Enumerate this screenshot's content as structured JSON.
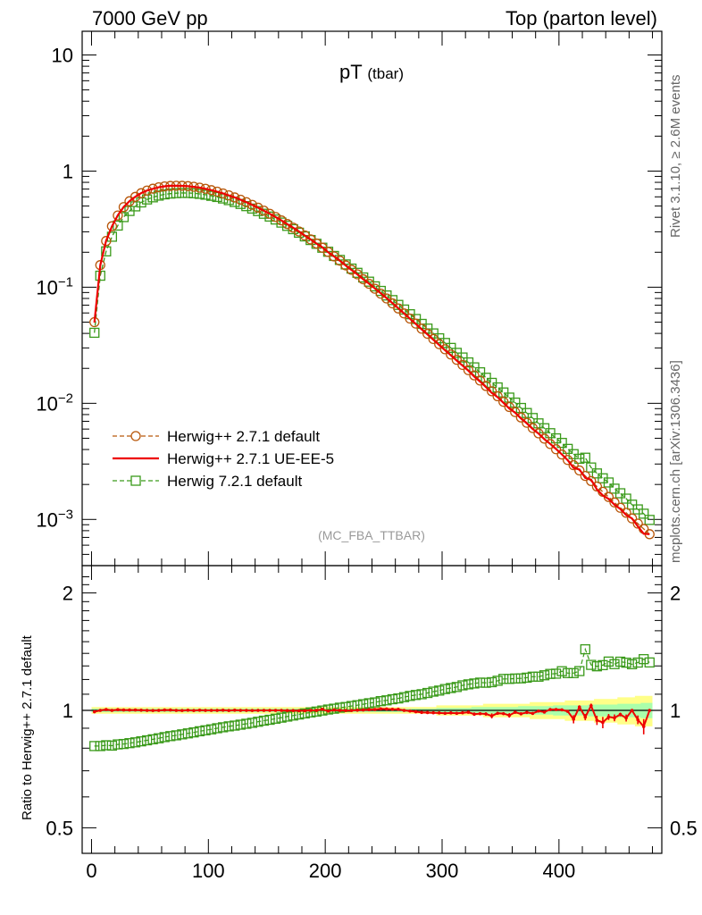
{
  "header": {
    "left": "7000 GeV pp",
    "right": "Top (parton level)"
  },
  "side_labels": {
    "rivet": "Rivet 3.1.10, ≥ 2.6M events",
    "mcplots": "mcplots.cern.ch [arXiv:1306.3436]"
  },
  "ratio_ylabel": "Ratio to Herwig++ 2.7.1 default",
  "colors": {
    "herwigpp_default": "#b8570a",
    "ue_ee5": "#ee0000",
    "herwig721": "#3a9a1a",
    "band_yellow": "#ffff88",
    "band_green": "#aaffaa"
  },
  "chart_data": [
    {
      "type": "line",
      "title": "pT",
      "title_suffix": "(tbar)",
      "annotation": "(MC_FBA_TTBAR)",
      "xlim": [
        -8,
        488
      ],
      "ylim": [
        0.0004,
        16
      ],
      "yscale": "log",
      "yticks": [
        {
          "v": 10,
          "m": "10",
          "e": ""
        },
        {
          "v": 1,
          "m": "1",
          "e": ""
        },
        {
          "v": 0.1,
          "m": "10",
          "e": "−1"
        },
        {
          "v": 0.01,
          "m": "10",
          "e": "−2"
        },
        {
          "v": 0.001,
          "m": "10",
          "e": "−3"
        }
      ],
      "legend_position": "bottom-left",
      "legend": [
        "Herwig++ 2.7.1 default",
        "Herwig++ 2.7.1 UE-EE-5",
        "Herwig 7.2.1 default"
      ],
      "x": [
        2.5,
        7.5,
        12.5,
        17.5,
        22.5,
        27.5,
        32.5,
        37.5,
        42.5,
        47.5,
        52.5,
        57.5,
        62.5,
        67.5,
        72.5,
        77.5,
        82.5,
        87.5,
        92.5,
        97.5,
        102.5,
        107.5,
        112.5,
        117.5,
        122.5,
        127.5,
        132.5,
        137.5,
        142.5,
        147.5,
        152.5,
        157.5,
        162.5,
        167.5,
        172.5,
        177.5,
        182.5,
        187.5,
        192.5,
        197.5,
        202.5,
        207.5,
        212.5,
        217.5,
        222.5,
        227.5,
        232.5,
        237.5,
        242.5,
        247.5,
        252.5,
        257.5,
        262.5,
        267.5,
        272.5,
        277.5,
        282.5,
        287.5,
        292.5,
        297.5,
        302.5,
        307.5,
        312.5,
        317.5,
        322.5,
        327.5,
        332.5,
        337.5,
        342.5,
        347.5,
        352.5,
        357.5,
        362.5,
        367.5,
        372.5,
        377.5,
        382.5,
        387.5,
        392.5,
        397.5,
        402.5,
        407.5,
        412.5,
        417.5,
        422.5,
        427.5,
        432.5,
        437.5,
        442.5,
        447.5,
        452.5,
        457.5,
        462.5,
        467.5,
        472.5,
        477.5
      ],
      "series": [
        {
          "name": "Herwig++ 2.7.1 default",
          "style": "dashed-circle",
          "values": [
            0.05,
            0.155,
            0.25,
            0.335,
            0.415,
            0.49,
            0.55,
            0.6,
            0.645,
            0.68,
            0.705,
            0.725,
            0.738,
            0.745,
            0.748,
            0.747,
            0.742,
            0.733,
            0.72,
            0.704,
            0.685,
            0.665,
            0.642,
            0.618,
            0.593,
            0.567,
            0.54,
            0.512,
            0.484,
            0.456,
            0.429,
            0.402,
            0.376,
            0.35,
            0.326,
            0.302,
            0.279,
            0.258,
            0.238,
            0.219,
            0.201,
            0.184,
            0.169,
            0.154,
            0.141,
            0.129,
            0.117,
            0.107,
            0.097,
            0.088,
            0.08,
            0.0725,
            0.0656,
            0.0594,
            0.0537,
            0.0486,
            0.0439,
            0.0397,
            0.0358,
            0.0323,
            0.0292,
            0.0263,
            0.0237,
            0.0214,
            0.0193,
            0.0174,
            0.0157,
            0.0141,
            0.0127,
            0.0115,
            0.0103,
            0.0093,
            0.0084,
            0.00755,
            0.0068,
            0.00612,
            0.00551,
            0.00496,
            0.00446,
            0.00402,
            0.00362,
            0.00325,
            0.00293,
            0.00264,
            0.00237,
            0.00214,
            0.00192,
            0.00173,
            0.00156,
            0.0014,
            0.00126,
            0.00114,
            0.00102,
            0.00092,
            0.000828,
            0.000746
          ]
        },
        {
          "name": "Herwig++ 2.7.1 UE-EE-5",
          "style": "solid",
          "values": [
            0.0496,
            0.155,
            0.2513,
            0.335,
            0.4167,
            0.4912,
            0.5511,
            0.6013,
            0.6458,
            0.68,
            0.7042,
            0.725,
            0.7395,
            0.7468,
            0.748,
            0.7462,
            0.7427,
            0.732,
            0.721,
            0.7038,
            0.685,
            0.665,
            0.6428,
            0.6176,
            0.5935,
            0.567,
            0.54,
            0.5116,
            0.484,
            0.4562,
            0.429,
            0.4021,
            0.376,
            0.3497,
            0.3256,
            0.3015,
            0.2785,
            0.258,
            0.2381,
            0.2204,
            0.2001,
            0.1843,
            0.169,
            0.1539,
            0.1408,
            0.1291,
            0.1172,
            0.1074,
            0.0975,
            0.0888,
            0.0806,
            0.0729,
            0.066,
            0.0594,
            0.0535,
            0.0482,
            0.0434,
            0.0392,
            0.0353,
            0.0318,
            0.0287,
            0.0259,
            0.0233,
            0.0211,
            0.0191,
            0.017,
            0.0154,
            0.0138,
            0.0123,
            0.0113,
            0.0101,
            0.00903,
            0.00831,
            0.0074,
            0.00672,
            0.00601,
            0.00549,
            0.00491,
            0.00448,
            0.00404,
            0.00363,
            0.00323,
            0.00278,
            0.00269,
            0.00228,
            0.0022,
            0.00181,
            0.00161,
            0.0015,
            0.00134,
            0.00123,
            0.00109,
            0.00102,
            0.00087,
            0.000753,
            0.000746
          ]
        },
        {
          "name": "Herwig 7.2.1 default",
          "style": "dashed-square",
          "values": [
            0.0405,
            0.1256,
            0.2035,
            0.272,
            0.3395,
            0.4016,
            0.4532,
            0.4968,
            0.5372,
            0.5698,
            0.5942,
            0.6148,
            0.6303,
            0.64,
            0.6456,
            0.6483,
            0.6477,
            0.6437,
            0.6365,
            0.6259,
            0.6124,
            0.5985,
            0.5811,
            0.5623,
            0.5418,
            0.5212,
            0.499,
            0.4756,
            0.4526,
            0.4291,
            0.4059,
            0.3827,
            0.3601,
            0.3374,
            0.3162,
            0.2947,
            0.2739,
            0.2549,
            0.2364,
            0.2188,
            0.202,
            0.1858,
            0.1717,
            0.1571,
            0.1446,
            0.133,
            0.1213,
            0.1116,
            0.1017,
            0.0929,
            0.0849,
            0.0774,
            0.0704,
            0.0642,
            0.0585,
            0.0532,
            0.0483,
            0.044,
            0.04,
            0.0363,
            0.0331,
            0.03,
            0.0272,
            0.0248,
            0.0225,
            0.0204,
            0.0185,
            0.0166,
            0.015,
            0.0137,
            0.0124,
            0.0112,
            0.01014,
            0.00912,
            0.00825,
            0.00747,
            0.00672,
            0.0061,
            0.00553,
            0.00499,
            0.00456,
            0.00405,
            0.00365,
            0.00333,
            0.0034,
            0.0028,
            0.00249,
            0.00226,
            0.00208,
            0.00184,
            0.00168,
            0.00151,
            0.00134,
            0.00122,
            0.00112,
            0.00099
          ]
        }
      ]
    },
    {
      "type": "line",
      "ylabel": "Ratio to Herwig++ 2.7.1 default",
      "xlim": [
        -8,
        488
      ],
      "ylim": [
        0.43,
        2.35
      ],
      "yscale": "log",
      "yticks": [
        2,
        1,
        0.5
      ],
      "xticks": [
        0,
        100,
        200,
        300,
        400
      ],
      "x_ref": "same as main panel",
      "series": [
        {
          "name": "Herwig++ 2.7.1 UE-EE-5",
          "values": [
            0.992,
            1.0,
            1.005,
            1.0,
            1.004,
            1.002,
            1.002,
            1.002,
            1.001,
            1.0,
            0.999,
            1.0,
            1.002,
            1.002,
            1.0,
            0.999,
            1.001,
            0.999,
            1.001,
            1.0,
            1.0,
            1.0,
            1.001,
            0.999,
            1.001,
            1.0,
            1.0,
            0.999,
            1.0,
            1.0,
            1.0,
            1.0,
            1.0,
            0.999,
            0.999,
            0.998,
            0.998,
            1.0,
            1.0,
            1.006,
            0.996,
            1.002,
            1.0,
            0.999,
            0.999,
            1.001,
            1.002,
            1.004,
            1.005,
            1.009,
            1.008,
            1.006,
            1.006,
            1.0,
            0.996,
            0.992,
            0.988,
            0.987,
            0.986,
            0.985,
            0.983,
            0.985,
            0.983,
            0.986,
            0.989,
            0.978,
            0.981,
            0.979,
            0.968,
            0.983,
            0.981,
            0.971,
            0.989,
            0.98,
            0.988,
            0.982,
            0.996,
            0.99,
            1.005,
            1.005,
            1.003,
            0.994,
            0.949,
            1.02,
            0.961,
            1.028,
            0.943,
            0.931,
            0.962,
            0.957,
            0.976,
            0.956,
            1.0,
            0.946,
            0.909,
            1.0
          ]
        },
        {
          "name": "Herwig 7.2.1 default",
          "values": [
            0.81,
            0.81,
            0.814,
            0.812,
            0.818,
            0.82,
            0.824,
            0.828,
            0.833,
            0.838,
            0.843,
            0.848,
            0.854,
            0.859,
            0.863,
            0.868,
            0.873,
            0.878,
            0.884,
            0.889,
            0.894,
            0.9,
            0.905,
            0.91,
            0.914,
            0.919,
            0.924,
            0.929,
            0.935,
            0.941,
            0.946,
            0.952,
            0.958,
            0.964,
            0.97,
            0.976,
            0.982,
            0.988,
            0.993,
            0.999,
            1.005,
            1.01,
            1.016,
            1.02,
            1.026,
            1.031,
            1.037,
            1.043,
            1.048,
            1.056,
            1.061,
            1.068,
            1.073,
            1.081,
            1.089,
            1.095,
            1.1,
            1.108,
            1.117,
            1.124,
            1.134,
            1.141,
            1.148,
            1.159,
            1.166,
            1.172,
            1.178,
            1.177,
            1.181,
            1.191,
            1.204,
            1.204,
            1.207,
            1.208,
            1.213,
            1.22,
            1.22,
            1.23,
            1.24,
            1.242,
            1.26,
            1.246,
            1.246,
            1.261,
            1.434,
            1.308,
            1.297,
            1.306,
            1.334,
            1.314,
            1.333,
            1.325,
            1.313,
            1.326,
            1.353,
            1.327
          ]
        }
      ],
      "uncertainty_band": {
        "name": "Herwig++ 2.7.1 default",
        "yellow_halfwidth": [
          0.02,
          0.02,
          0.02,
          0.02,
          0.02,
          0.02,
          0.02,
          0.02,
          0.02,
          0.02,
          0.02,
          0.02,
          0.02,
          0.02,
          0.02,
          0.02,
          0.02,
          0.02,
          0.02,
          0.02,
          0.02,
          0.02,
          0.02,
          0.02,
          0.02,
          0.02,
          0.02,
          0.02,
          0.02,
          0.02,
          0.02,
          0.02,
          0.02,
          0.02,
          0.02,
          0.02,
          0.02,
          0.02,
          0.02,
          0.02,
          0.02,
          0.02,
          0.02,
          0.02,
          0.02,
          0.02,
          0.02,
          0.02,
          0.02,
          0.02,
          0.02,
          0.02,
          0.02,
          0.02,
          0.02,
          0.02,
          0.02,
          0.02,
          0.02,
          0.03,
          0.03,
          0.03,
          0.03,
          0.03,
          0.03,
          0.03,
          0.03,
          0.04,
          0.04,
          0.04,
          0.04,
          0.04,
          0.04,
          0.04,
          0.04,
          0.05,
          0.05,
          0.05,
          0.05,
          0.05,
          0.05,
          0.06,
          0.06,
          0.06,
          0.06,
          0.06,
          0.07,
          0.07,
          0.07,
          0.07,
          0.08,
          0.08,
          0.08,
          0.09,
          0.09,
          0.09
        ],
        "green_halfwidth": [
          0.01,
          0.01,
          0.01,
          0.01,
          0.01,
          0.01,
          0.01,
          0.01,
          0.01,
          0.01,
          0.01,
          0.01,
          0.01,
          0.01,
          0.01,
          0.01,
          0.01,
          0.01,
          0.01,
          0.01,
          0.01,
          0.01,
          0.01,
          0.01,
          0.01,
          0.01,
          0.01,
          0.01,
          0.01,
          0.01,
          0.01,
          0.01,
          0.01,
          0.01,
          0.01,
          0.01,
          0.01,
          0.01,
          0.01,
          0.01,
          0.01,
          0.01,
          0.01,
          0.01,
          0.01,
          0.01,
          0.01,
          0.01,
          0.01,
          0.01,
          0.01,
          0.01,
          0.01,
          0.01,
          0.01,
          0.01,
          0.01,
          0.01,
          0.01,
          0.015,
          0.015,
          0.015,
          0.015,
          0.015,
          0.015,
          0.02,
          0.02,
          0.02,
          0.02,
          0.02,
          0.02,
          0.02,
          0.02,
          0.025,
          0.025,
          0.025,
          0.025,
          0.025,
          0.025,
          0.03,
          0.03,
          0.03,
          0.03,
          0.03,
          0.03,
          0.035,
          0.035,
          0.035,
          0.035,
          0.035,
          0.04,
          0.04,
          0.04,
          0.04,
          0.045,
          0.045
        ]
      }
    }
  ]
}
